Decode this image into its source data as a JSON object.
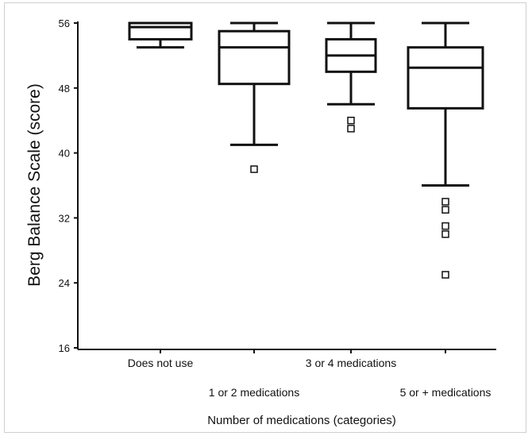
{
  "chart_data": {
    "type": "box",
    "xlabel": "Number of medications (categories)",
    "ylabel": "Berg Balance Scale (score)",
    "ylim": [
      16,
      56
    ],
    "yticks": [
      16,
      24,
      32,
      40,
      48,
      56
    ],
    "grid": false,
    "categories": [
      "Does not use",
      "1 or 2 medications",
      "3 or 4 medications",
      "5 or + medications"
    ],
    "boxes": [
      {
        "category": "Does not use",
        "min": 53,
        "q1": 54,
        "median": 55.5,
        "q3": 56,
        "max": 56,
        "outliers": []
      },
      {
        "category": "1 or 2 medications",
        "min": 41,
        "q1": 48.5,
        "median": 53,
        "q3": 55,
        "max": 56,
        "outliers": [
          38
        ]
      },
      {
        "category": "3 or 4 medications",
        "min": 46,
        "q1": 50,
        "median": 52,
        "q3": 54,
        "max": 56,
        "outliers": [
          44,
          43
        ]
      },
      {
        "category": "5 or + medications",
        "min": 36,
        "q1": 45.5,
        "median": 50.5,
        "q3": 53,
        "max": 56,
        "outliers": [
          34,
          33,
          31,
          30,
          25
        ]
      }
    ]
  }
}
